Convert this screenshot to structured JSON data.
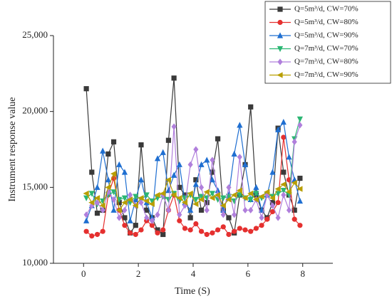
{
  "chart_data": {
    "type": "line",
    "x_label": "Time (S)",
    "y_label": "Instrument response value",
    "x": [
      0.1,
      0.3,
      0.5,
      0.7,
      0.9,
      1.1,
      1.3,
      1.5,
      1.7,
      1.9,
      2.1,
      2.3,
      2.5,
      2.7,
      2.9,
      3.1,
      3.3,
      3.5,
      3.7,
      3.9,
      4.1,
      4.3,
      4.5,
      4.7,
      4.9,
      5.1,
      5.3,
      5.5,
      5.7,
      5.9,
      6.1,
      6.3,
      6.5,
      6.7,
      6.9,
      7.1,
      7.3,
      7.5,
      7.7,
      7.9
    ],
    "series": [
      {
        "name": "Q=5m³/d, CW=70%",
        "color": "#3a3a3a",
        "marker": "square",
        "values": [
          21500,
          16000,
          13300,
          13500,
          17200,
          18000,
          14000,
          13000,
          12000,
          12500,
          17800,
          13500,
          13000,
          12200,
          11900,
          18100,
          22200,
          15000,
          14500,
          13000,
          15500,
          13500,
          14000,
          16000,
          18200,
          13500,
          13000,
          12000,
          14500,
          16500,
          20300,
          14500,
          13500,
          13000,
          14000,
          18900,
          16000,
          14500,
          13500,
          15600
        ]
      },
      {
        "name": "Q=5m³/d, CW=80%",
        "color": "#e5302f",
        "marker": "circle",
        "values": [
          12100,
          11800,
          11900,
          12100,
          14500,
          15600,
          13500,
          12500,
          12000,
          11900,
          12200,
          12800,
          12500,
          12000,
          12200,
          13500,
          14500,
          12800,
          12300,
          12200,
          12600,
          12100,
          11900,
          12000,
          12200,
          12400,
          11900,
          12100,
          12300,
          12200,
          12100,
          12300,
          12500,
          12900,
          13400,
          14000,
          18300,
          15500,
          12900,
          12500
        ]
      },
      {
        "name": "Q=5m³/d, CW=90%",
        "color": "#1f6fd1",
        "marker": "triangle-up",
        "values": [
          12800,
          13800,
          15000,
          17400,
          15500,
          13500,
          16500,
          16000,
          12800,
          14200,
          15500,
          14000,
          13000,
          16900,
          17300,
          14800,
          15800,
          16500,
          14000,
          13500,
          15200,
          16500,
          16800,
          15500,
          14800,
          13500,
          14500,
          17200,
          19100,
          16500,
          14200,
          15000,
          13500,
          14500,
          16000,
          18800,
          19300,
          17000,
          15500,
          14100
        ]
      },
      {
        "name": "Q=7m³/d, CW=70%",
        "color": "#2bb673",
        "marker": "triangle-down",
        "values": [
          14300,
          14600,
          13900,
          14100,
          14500,
          14700,
          14200,
          14300,
          14000,
          14400,
          14200,
          14500,
          14100,
          14300,
          14400,
          14200,
          14600,
          14100,
          14300,
          14500,
          14200,
          14400,
          14300,
          14600,
          14200,
          14300,
          14400,
          14100,
          14500,
          14300,
          14200,
          14600,
          14300,
          14500,
          14400,
          14600,
          14800,
          14500,
          18200,
          19500
        ]
      },
      {
        "name": "Q=7m³/d, CW=80%",
        "color": "#b07fdc",
        "marker": "diamond",
        "values": [
          13200,
          13800,
          14000,
          13500,
          14700,
          14200,
          13000,
          13500,
          14500,
          13800,
          14000,
          13000,
          12800,
          13200,
          14500,
          13500,
          19000,
          13200,
          13800,
          16500,
          17500,
          15000,
          13500,
          16800,
          14500,
          13200,
          15000,
          13200,
          17000,
          13500,
          13500,
          14200,
          13000,
          14500,
          13800,
          13000,
          14500,
          13500,
          18000,
          19100
        ]
      },
      {
        "name": "Q=7m³/d, CW=90%",
        "color": "#b89e00",
        "marker": "triangle-left",
        "values": [
          14600,
          14000,
          14300,
          13800,
          15000,
          15900,
          13500,
          14000,
          14200,
          13800,
          14300,
          14100,
          13900,
          14500,
          14600,
          15500,
          14500,
          14300,
          14000,
          14600,
          13900,
          14200,
          14700,
          14300,
          14500,
          13800,
          14200,
          14500,
          14800,
          14300,
          14600,
          14200,
          14400,
          14700,
          14300,
          14900,
          15200,
          14700,
          15300,
          14900
        ]
      }
    ],
    "xlim": [
      -1.1,
      9.1
    ],
    "xticks": [
      0,
      2,
      4,
      6,
      8
    ],
    "ylim": [
      10000,
      25000
    ],
    "yticks": [
      {
        "value": 10000,
        "label": "10,000"
      },
      {
        "value": 15000,
        "label": "15,000"
      },
      {
        "value": 20000,
        "label": "20,000"
      },
      {
        "value": 25000,
        "label": "25,000"
      }
    ],
    "grid": false,
    "legend": "upper right"
  }
}
